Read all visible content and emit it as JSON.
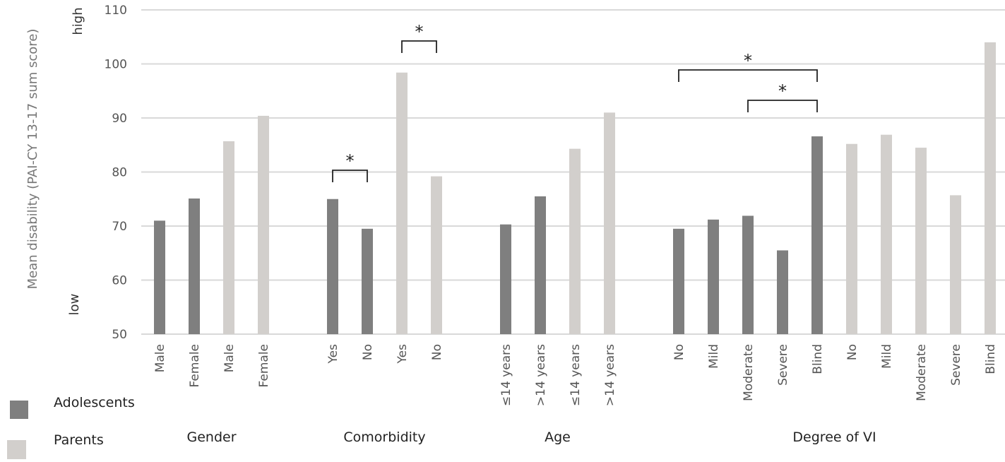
{
  "chart_data": {
    "type": "bar",
    "title": "",
    "ylabel": "Mean disability (PAI-CY 13-17 sum score)",
    "y_high_label": "high",
    "y_low_label": "low",
    "ylim": [
      50,
      110
    ],
    "yticks": [
      50,
      60,
      70,
      80,
      90,
      100,
      110
    ],
    "grid": true,
    "legend_position": "bottom-left",
    "colors": {
      "Adolescents": "#7f7f7f",
      "Parents": "#d2cfcc"
    },
    "legend": [
      "Adolescents",
      "Parents"
    ],
    "groups": [
      {
        "label": "Gender",
        "bars": [
          {
            "label": "Male",
            "series": "Adolescents",
            "value": 71
          },
          {
            "label": "Female",
            "series": "Adolescents",
            "value": 75.1
          },
          {
            "label": "Male",
            "series": "Parents",
            "value": 85.7
          },
          {
            "label": "Female",
            "series": "Parents",
            "value": 90.4
          }
        ]
      },
      {
        "label": "Comorbidity",
        "bars": [
          {
            "label": "Yes",
            "series": "Adolescents",
            "value": 75
          },
          {
            "label": "No",
            "series": "Adolescents",
            "value": 69.5
          },
          {
            "label": "Yes",
            "series": "Parents",
            "value": 98.4
          },
          {
            "label": "No",
            "series": "Parents",
            "value": 79.2
          }
        ]
      },
      {
        "label": "Age",
        "bars": [
          {
            "label": "≤14 years",
            "series": "Adolescents",
            "value": 70.3
          },
          {
            "label": ">14 years",
            "series": "Adolescents",
            "value": 75.5
          },
          {
            "label": "≤14 years",
            "series": "Parents",
            "value": 84.3
          },
          {
            "label": ">14 years",
            "series": "Parents",
            "value": 91
          }
        ]
      },
      {
        "label": "Degree of VI",
        "bars": [
          {
            "label": "No",
            "series": "Adolescents",
            "value": 69.5
          },
          {
            "label": "Mild",
            "series": "Adolescents",
            "value": 71.2
          },
          {
            "label": "Moderate",
            "series": "Adolescents",
            "value": 71.9
          },
          {
            "label": "Severe",
            "series": "Adolescents",
            "value": 65.5
          },
          {
            "label": "Blind",
            "series": "Adolescents",
            "value": 86.6
          },
          {
            "label": "No",
            "series": "Parents",
            "value": 85.2
          },
          {
            "label": "Mild",
            "series": "Parents",
            "value": 86.9
          },
          {
            "label": "Moderate",
            "series": "Parents",
            "value": 84.5
          },
          {
            "label": "Severe",
            "series": "Parents",
            "value": 75.7
          },
          {
            "label": "Blind",
            "series": "Parents",
            "value": 104
          }
        ]
      }
    ],
    "significance": [
      {
        "group": 1,
        "from": 0,
        "to": 1,
        "label": "*"
      },
      {
        "group": 1,
        "from": 2,
        "to": 3,
        "label": "*"
      },
      {
        "group": 3,
        "from": 0,
        "to": 4,
        "label": "*"
      },
      {
        "group": 3,
        "from": 2,
        "to": 4,
        "label": "*"
      }
    ]
  }
}
